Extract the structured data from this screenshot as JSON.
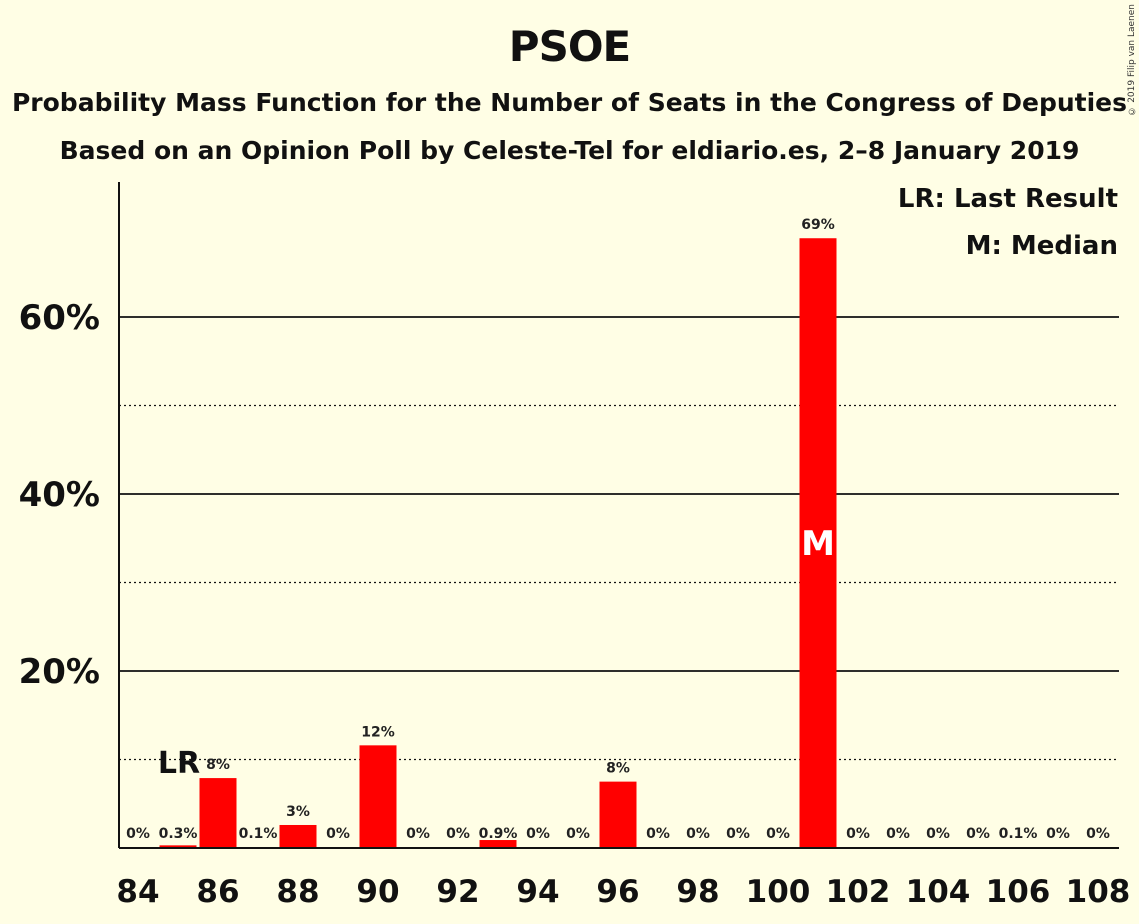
{
  "chart_data": {
    "type": "bar",
    "title": "PSOE",
    "subtitle": "Probability Mass Function for the Number of Seats in the Congress of Deputies",
    "subtitle2": "Based on an Opinion Poll by Celeste-Tel for eldiario.es, 2–8 January 2019",
    "copyright": "© 2019 Filip van Laenen",
    "legend": {
      "lr": "LR: Last Result",
      "m": "M: Median",
      "placement": "top-right"
    },
    "x": [
      84,
      85,
      86,
      87,
      88,
      89,
      90,
      91,
      92,
      93,
      94,
      95,
      96,
      97,
      98,
      99,
      100,
      101,
      102,
      103,
      104,
      105,
      106,
      107,
      108
    ],
    "values": [
      0,
      0.3,
      7.9,
      0.1,
      2.6,
      0,
      11.6,
      0,
      0,
      0.9,
      0,
      0,
      7.5,
      0,
      0,
      0,
      0,
      68.9,
      0,
      0,
      0,
      0,
      0.1,
      0,
      0
    ],
    "value_labels": [
      "0%",
      "0.3%",
      "8%",
      "0.1%",
      "3%",
      "0%",
      "12%",
      "0%",
      "0%",
      "0.9%",
      "0%",
      "0%",
      "8%",
      "0%",
      "0%",
      "0%",
      "0%",
      "69%",
      "0%",
      "0%",
      "0%",
      "0%",
      "0.1%",
      "0%",
      "0%"
    ],
    "xticks": [
      84,
      86,
      88,
      90,
      92,
      94,
      96,
      98,
      100,
      102,
      104,
      106,
      108
    ],
    "yticks": [
      20,
      40,
      60
    ],
    "ytick_labels": [
      "20%",
      "40%",
      "60%"
    ],
    "minor_gridlines": [
      10,
      30,
      50
    ],
    "ylim": [
      0,
      75
    ],
    "last_result": 85,
    "last_result_label": "LR",
    "median": 101,
    "median_label": "M",
    "bar_color": "#FF0000"
  }
}
